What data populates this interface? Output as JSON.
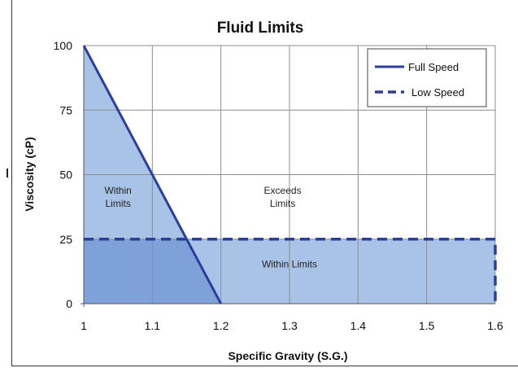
{
  "chart_data": {
    "type": "line",
    "title": "Fluid Limits",
    "xlabel": "Specific Gravity (S.G.)",
    "ylabel": "Viscosity (cP)",
    "xlim": [
      1,
      1.6
    ],
    "ylim": [
      0,
      100
    ],
    "x_ticks": [
      "1",
      "1.1",
      "1.2",
      "1.3",
      "1.4",
      "1.5",
      "1.6"
    ],
    "y_ticks": [
      "0",
      "25",
      "50",
      "75",
      "100"
    ],
    "grid": true,
    "legend_position": "top-right",
    "series": [
      {
        "name": "Full Speed",
        "style": "solid",
        "color": "#2b3e9c",
        "x": [
          1,
          1.2
        ],
        "y": [
          100,
          0
        ]
      },
      {
        "name": "Low Speed",
        "style": "dashed",
        "color": "#2b3e9c",
        "x": [
          1,
          1.6,
          1.6
        ],
        "y": [
          25,
          25,
          0
        ]
      }
    ],
    "annotations": [
      {
        "lines": [
          "Within",
          "Limits"
        ],
        "x": 1.05,
        "y": 40
      },
      {
        "lines": [
          "Exceeds",
          "Limits"
        ],
        "x": 1.29,
        "y": 40
      },
      {
        "lines": [
          "Within Limits"
        ],
        "x": 1.3,
        "y": 14
      }
    ],
    "colors": {
      "fill_light": "#a9c3e7",
      "fill_dark": "#7ea1da",
      "line": "#2b3e9c",
      "grid": "#8c8c8c"
    }
  }
}
